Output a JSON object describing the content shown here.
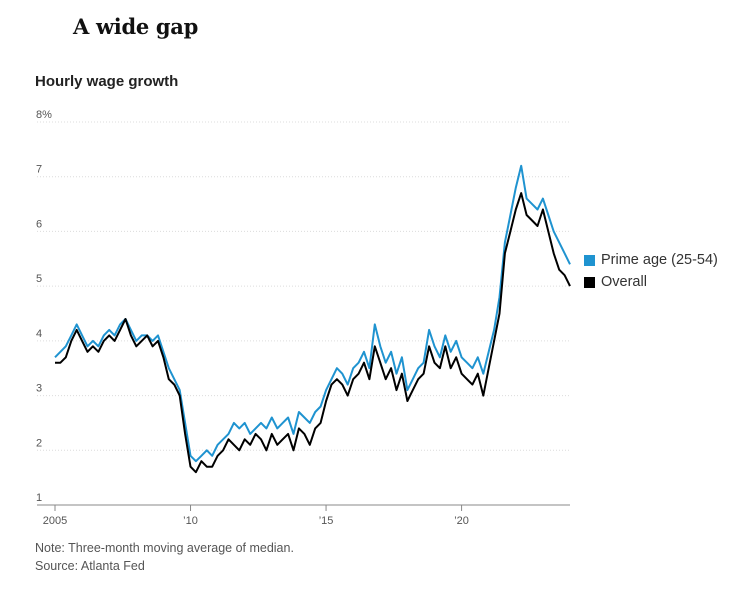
{
  "title": "A wide gap",
  "chart_data": {
    "type": "line",
    "subtitle": "Hourly wage growth",
    "ylim": [
      1,
      8
    ],
    "xlim": [
      2005,
      2024
    ],
    "y_ticks": [
      {
        "value": 8,
        "label": "8%"
      },
      {
        "value": 7,
        "label": "7"
      },
      {
        "value": 6,
        "label": "6"
      },
      {
        "value": 5,
        "label": "5"
      },
      {
        "value": 4,
        "label": "4"
      },
      {
        "value": 3,
        "label": "3"
      },
      {
        "value": 2,
        "label": "2"
      },
      {
        "value": 1,
        "label": "1"
      }
    ],
    "x_ticks": [
      {
        "value": 2005,
        "label": "2005"
      },
      {
        "value": 2010,
        "label": "’10"
      },
      {
        "value": 2015,
        "label": "’15"
      },
      {
        "value": 2020,
        "label": "’20"
      }
    ],
    "grid": true,
    "legend_position": "right",
    "series": [
      {
        "name": "Prime age (25-54)",
        "color": "#1f93d0",
        "points": [
          [
            2005.0,
            3.7
          ],
          [
            2005.2,
            3.8
          ],
          [
            2005.4,
            3.9
          ],
          [
            2005.6,
            4.1
          ],
          [
            2005.8,
            4.3
          ],
          [
            2006.0,
            4.1
          ],
          [
            2006.2,
            3.9
          ],
          [
            2006.4,
            4.0
          ],
          [
            2006.6,
            3.9
          ],
          [
            2006.8,
            4.1
          ],
          [
            2007.0,
            4.2
          ],
          [
            2007.2,
            4.1
          ],
          [
            2007.4,
            4.3
          ],
          [
            2007.6,
            4.4
          ],
          [
            2007.8,
            4.2
          ],
          [
            2008.0,
            4.0
          ],
          [
            2008.2,
            4.1
          ],
          [
            2008.4,
            4.1
          ],
          [
            2008.6,
            4.0
          ],
          [
            2008.8,
            4.1
          ],
          [
            2009.0,
            3.8
          ],
          [
            2009.2,
            3.5
          ],
          [
            2009.4,
            3.3
          ],
          [
            2009.6,
            3.1
          ],
          [
            2009.8,
            2.5
          ],
          [
            2010.0,
            1.9
          ],
          [
            2010.2,
            1.8
          ],
          [
            2010.4,
            1.9
          ],
          [
            2010.6,
            2.0
          ],
          [
            2010.8,
            1.9
          ],
          [
            2011.0,
            2.1
          ],
          [
            2011.2,
            2.2
          ],
          [
            2011.4,
            2.3
          ],
          [
            2011.6,
            2.5
          ],
          [
            2011.8,
            2.4
          ],
          [
            2012.0,
            2.5
          ],
          [
            2012.2,
            2.3
          ],
          [
            2012.4,
            2.4
          ],
          [
            2012.6,
            2.5
          ],
          [
            2012.8,
            2.4
          ],
          [
            2013.0,
            2.6
          ],
          [
            2013.2,
            2.4
          ],
          [
            2013.4,
            2.5
          ],
          [
            2013.6,
            2.6
          ],
          [
            2013.8,
            2.3
          ],
          [
            2014.0,
            2.7
          ],
          [
            2014.2,
            2.6
          ],
          [
            2014.4,
            2.5
          ],
          [
            2014.6,
            2.7
          ],
          [
            2014.8,
            2.8
          ],
          [
            2015.0,
            3.1
          ],
          [
            2015.2,
            3.3
          ],
          [
            2015.4,
            3.5
          ],
          [
            2015.6,
            3.4
          ],
          [
            2015.8,
            3.2
          ],
          [
            2016.0,
            3.5
          ],
          [
            2016.2,
            3.6
          ],
          [
            2016.4,
            3.8
          ],
          [
            2016.6,
            3.5
          ],
          [
            2016.8,
            4.3
          ],
          [
            2017.0,
            3.9
          ],
          [
            2017.2,
            3.6
          ],
          [
            2017.4,
            3.8
          ],
          [
            2017.6,
            3.4
          ],
          [
            2017.8,
            3.7
          ],
          [
            2018.0,
            3.1
          ],
          [
            2018.2,
            3.3
          ],
          [
            2018.4,
            3.5
          ],
          [
            2018.6,
            3.6
          ],
          [
            2018.8,
            4.2
          ],
          [
            2019.0,
            3.9
          ],
          [
            2019.2,
            3.7
          ],
          [
            2019.4,
            4.1
          ],
          [
            2019.6,
            3.8
          ],
          [
            2019.8,
            4.0
          ],
          [
            2020.0,
            3.7
          ],
          [
            2020.2,
            3.6
          ],
          [
            2020.4,
            3.5
          ],
          [
            2020.6,
            3.7
          ],
          [
            2020.8,
            3.4
          ],
          [
            2021.0,
            3.8
          ],
          [
            2021.2,
            4.2
          ],
          [
            2021.4,
            4.8
          ],
          [
            2021.6,
            5.8
          ],
          [
            2021.8,
            6.3
          ],
          [
            2022.0,
            6.8
          ],
          [
            2022.2,
            7.2
          ],
          [
            2022.4,
            6.6
          ],
          [
            2022.6,
            6.5
          ],
          [
            2022.8,
            6.4
          ],
          [
            2023.0,
            6.6
          ],
          [
            2023.2,
            6.3
          ],
          [
            2023.4,
            6.0
          ],
          [
            2023.6,
            5.8
          ],
          [
            2023.8,
            5.6
          ],
          [
            2024.0,
            5.4
          ]
        ]
      },
      {
        "name": "Overall",
        "color": "#000000",
        "points": [
          [
            2005.0,
            3.6
          ],
          [
            2005.2,
            3.6
          ],
          [
            2005.4,
            3.7
          ],
          [
            2005.6,
            4.0
          ],
          [
            2005.8,
            4.2
          ],
          [
            2006.0,
            4.0
          ],
          [
            2006.2,
            3.8
          ],
          [
            2006.4,
            3.9
          ],
          [
            2006.6,
            3.8
          ],
          [
            2006.8,
            4.0
          ],
          [
            2007.0,
            4.1
          ],
          [
            2007.2,
            4.0
          ],
          [
            2007.4,
            4.2
          ],
          [
            2007.6,
            4.4
          ],
          [
            2007.8,
            4.1
          ],
          [
            2008.0,
            3.9
          ],
          [
            2008.2,
            4.0
          ],
          [
            2008.4,
            4.1
          ],
          [
            2008.6,
            3.9
          ],
          [
            2008.8,
            4.0
          ],
          [
            2009.0,
            3.7
          ],
          [
            2009.2,
            3.3
          ],
          [
            2009.4,
            3.2
          ],
          [
            2009.6,
            3.0
          ],
          [
            2009.8,
            2.3
          ],
          [
            2010.0,
            1.7
          ],
          [
            2010.2,
            1.6
          ],
          [
            2010.4,
            1.8
          ],
          [
            2010.6,
            1.7
          ],
          [
            2010.8,
            1.7
          ],
          [
            2011.0,
            1.9
          ],
          [
            2011.2,
            2.0
          ],
          [
            2011.4,
            2.2
          ],
          [
            2011.6,
            2.1
          ],
          [
            2011.8,
            2.0
          ],
          [
            2012.0,
            2.2
          ],
          [
            2012.2,
            2.1
          ],
          [
            2012.4,
            2.3
          ],
          [
            2012.6,
            2.2
          ],
          [
            2012.8,
            2.0
          ],
          [
            2013.0,
            2.3
          ],
          [
            2013.2,
            2.1
          ],
          [
            2013.4,
            2.2
          ],
          [
            2013.6,
            2.3
          ],
          [
            2013.8,
            2.0
          ],
          [
            2014.0,
            2.4
          ],
          [
            2014.2,
            2.3
          ],
          [
            2014.4,
            2.1
          ],
          [
            2014.6,
            2.4
          ],
          [
            2014.8,
            2.5
          ],
          [
            2015.0,
            2.9
          ],
          [
            2015.2,
            3.2
          ],
          [
            2015.4,
            3.3
          ],
          [
            2015.6,
            3.2
          ],
          [
            2015.8,
            3.0
          ],
          [
            2016.0,
            3.3
          ],
          [
            2016.2,
            3.4
          ],
          [
            2016.4,
            3.6
          ],
          [
            2016.6,
            3.3
          ],
          [
            2016.8,
            3.9
          ],
          [
            2017.0,
            3.6
          ],
          [
            2017.2,
            3.3
          ],
          [
            2017.4,
            3.5
          ],
          [
            2017.6,
            3.1
          ],
          [
            2017.8,
            3.4
          ],
          [
            2018.0,
            2.9
          ],
          [
            2018.2,
            3.1
          ],
          [
            2018.4,
            3.3
          ],
          [
            2018.6,
            3.4
          ],
          [
            2018.8,
            3.9
          ],
          [
            2019.0,
            3.6
          ],
          [
            2019.2,
            3.5
          ],
          [
            2019.4,
            3.9
          ],
          [
            2019.6,
            3.5
          ],
          [
            2019.8,
            3.7
          ],
          [
            2020.0,
            3.4
          ],
          [
            2020.2,
            3.3
          ],
          [
            2020.4,
            3.2
          ],
          [
            2020.6,
            3.4
          ],
          [
            2020.8,
            3.0
          ],
          [
            2021.0,
            3.5
          ],
          [
            2021.2,
            4.0
          ],
          [
            2021.4,
            4.5
          ],
          [
            2021.6,
            5.6
          ],
          [
            2021.8,
            6.0
          ],
          [
            2022.0,
            6.4
          ],
          [
            2022.2,
            6.7
          ],
          [
            2022.4,
            6.3
          ],
          [
            2022.6,
            6.2
          ],
          [
            2022.8,
            6.1
          ],
          [
            2023.0,
            6.4
          ],
          [
            2023.2,
            6.0
          ],
          [
            2023.4,
            5.6
          ],
          [
            2023.6,
            5.3
          ],
          [
            2023.8,
            5.2
          ],
          [
            2024.0,
            5.0
          ]
        ]
      }
    ]
  },
  "notes": {
    "note": "Note: Three-month moving average of median.",
    "source": "Source: Atlanta Fed"
  }
}
